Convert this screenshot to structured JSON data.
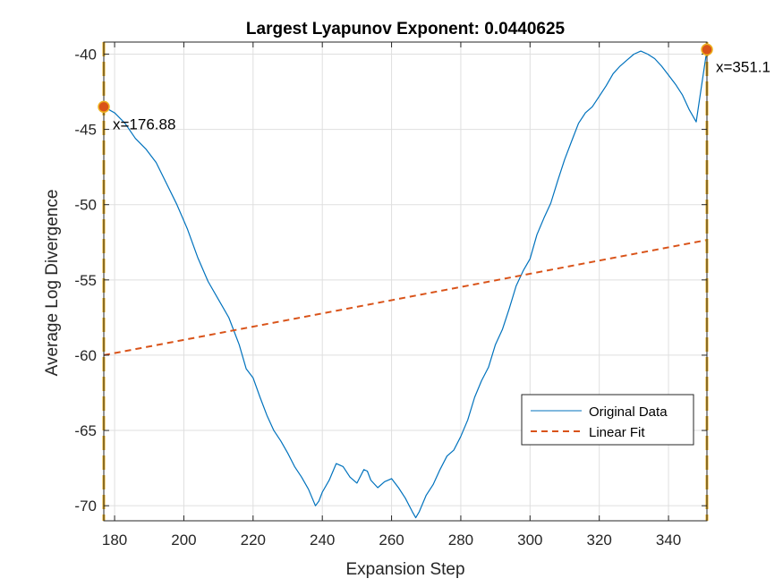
{
  "chart_data": {
    "type": "line",
    "title": "Largest Lyapunov Exponent: 0.0440625",
    "xlabel": "Expansion Step",
    "ylabel": "Average Log Divergence",
    "xlim": [
      176.88,
      351.1
    ],
    "ylim": [
      -71,
      -39.2
    ],
    "xticks": [
      180,
      200,
      220,
      240,
      260,
      280,
      300,
      320,
      340
    ],
    "xtick_labels": [
      "180",
      "200",
      "220",
      "240",
      "260",
      "280",
      "300",
      "320",
      "340"
    ],
    "yticks": [
      -40,
      -45,
      -50,
      -55,
      -60,
      -65,
      -70
    ],
    "ytick_labels": [
      "-40",
      "-45",
      "-50",
      "-55",
      "-60",
      "-65",
      "-70"
    ],
    "grid": true,
    "legend_position": "lower-right",
    "series": [
      {
        "name": "Original Data",
        "color": "#0072BD",
        "style": "solid",
        "x": [
          176.88,
          180,
          183,
          186,
          189,
          192,
          195,
          198,
          201,
          204,
          207,
          210,
          213,
          216,
          218,
          220,
          222,
          224,
          226,
          228,
          230,
          232,
          234,
          236,
          238,
          239,
          240,
          242,
          244,
          246,
          248,
          250,
          252,
          253,
          254,
          256,
          258,
          260,
          262,
          264,
          266,
          267,
          268,
          270,
          272,
          274,
          276,
          278,
          280,
          282,
          284,
          286,
          288,
          290,
          292,
          294,
          296,
          298,
          300,
          302,
          304,
          306,
          308,
          310,
          312,
          314,
          316,
          318,
          320,
          322,
          324,
          326,
          328,
          330,
          332,
          334,
          336,
          338,
          340,
          342,
          344,
          346,
          348,
          351.1
        ],
        "y": [
          -43.5,
          -43.9,
          -44.6,
          -45.6,
          -46.3,
          -47.2,
          -48.6,
          -50.0,
          -51.6,
          -53.5,
          -55.1,
          -56.3,
          -57.5,
          -59.3,
          -60.9,
          -61.5,
          -62.8,
          -64.0,
          -65.0,
          -65.7,
          -66.5,
          -67.4,
          -68.1,
          -68.9,
          -70.0,
          -69.7,
          -69.1,
          -68.3,
          -67.2,
          -67.4,
          -68.1,
          -68.5,
          -67.6,
          -67.7,
          -68.3,
          -68.8,
          -68.4,
          -68.2,
          -68.8,
          -69.5,
          -70.4,
          -70.8,
          -70.4,
          -69.3,
          -68.6,
          -67.6,
          -66.7,
          -66.3,
          -65.4,
          -64.3,
          -62.8,
          -61.7,
          -60.8,
          -59.3,
          -58.3,
          -56.9,
          -55.4,
          -54.4,
          -53.6,
          -52.0,
          -50.9,
          -49.9,
          -48.4,
          -47.0,
          -45.8,
          -44.6,
          -43.9,
          -43.5,
          -42.8,
          -42.1,
          -41.3,
          -40.8,
          -40.4,
          -40.0,
          -39.8,
          -40.0,
          -40.3,
          -40.8,
          -41.4,
          -42.0,
          -42.7,
          -43.7,
          -44.5,
          -39.7
        ]
      },
      {
        "name": "Linear Fit",
        "color": "#D95319",
        "style": "dashed",
        "x": [
          176.88,
          351.1
        ],
        "y": [
          -60.0,
          -52.35
        ]
      }
    ],
    "annotations": [
      {
        "label": "x=176.88",
        "x": 176.88,
        "y": -43.5
      },
      {
        "label": "x=351.1",
        "x": 351.1,
        "y": -39.7
      }
    ],
    "vertical_markers": [
      176.88,
      351.1
    ],
    "marker_color": "#EDB120"
  }
}
